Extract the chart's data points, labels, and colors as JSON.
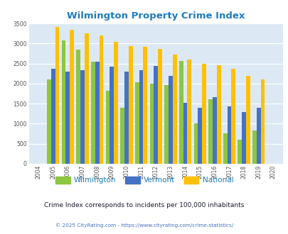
{
  "title": "Wilmington Property Crime Index",
  "years": [
    2004,
    2005,
    2006,
    2007,
    2008,
    2009,
    2010,
    2011,
    2012,
    2013,
    2014,
    2015,
    2016,
    2017,
    2018,
    2019,
    2020
  ],
  "wilmington": [
    null,
    2100,
    3080,
    2840,
    2540,
    1820,
    1390,
    2040,
    2000,
    1960,
    2560,
    1000,
    1600,
    760,
    600,
    830,
    null
  ],
  "vermont": [
    null,
    2370,
    2290,
    2330,
    2540,
    2430,
    2290,
    2340,
    2440,
    2190,
    1520,
    1390,
    1660,
    1440,
    1290,
    1400,
    null
  ],
  "national": [
    null,
    3410,
    3340,
    3260,
    3200,
    3040,
    2940,
    2910,
    2860,
    2730,
    2590,
    2490,
    2460,
    2360,
    2200,
    2110,
    null
  ],
  "wilmington_color": "#8dc63f",
  "vermont_color": "#4472c4",
  "national_color": "#ffc000",
  "plot_bg": "#dce9f5",
  "title_color": "#1f7bbf",
  "ylim": [
    0,
    3500
  ],
  "yticks": [
    0,
    500,
    1000,
    1500,
    2000,
    2500,
    3000,
    3500
  ],
  "subtitle": "Crime Index corresponds to incidents per 100,000 inhabitants",
  "footer": "© 2025 CityRating.com - https://www.cityrating.com/crime-statistics/",
  "subtitle_color": "#1a1a2e",
  "footer_color": "#4472c4"
}
